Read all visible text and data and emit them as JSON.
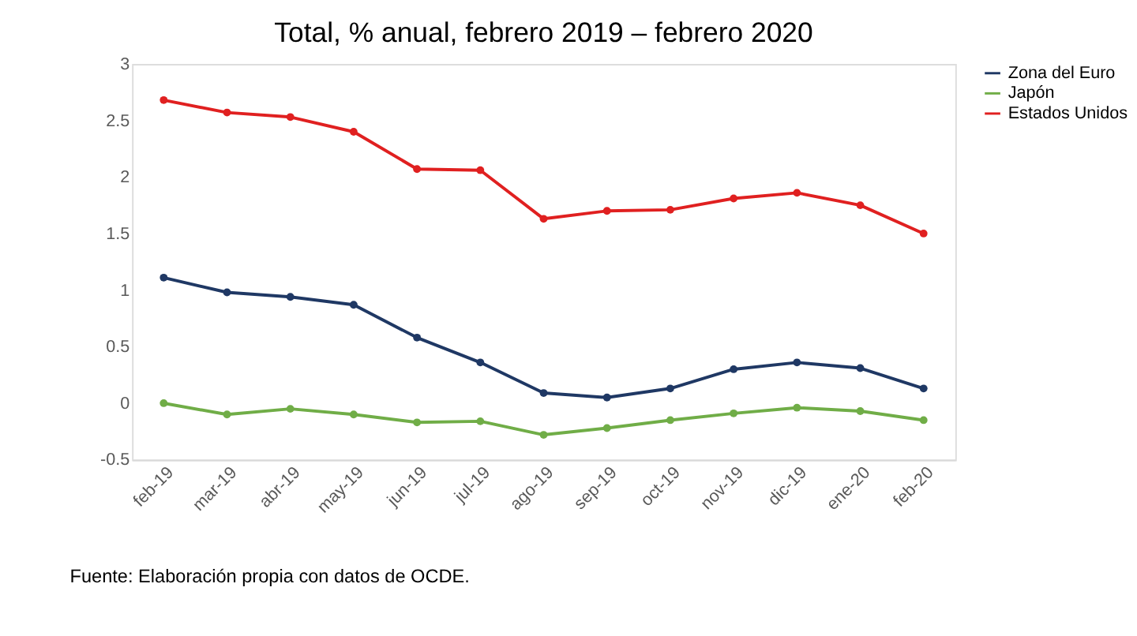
{
  "chart_data": {
    "type": "line",
    "title": "Total, % anual, febrero 2019 – febrero 2020",
    "categories": [
      "feb-19",
      "mar-19",
      "abr-19",
      "may-19",
      "jun-19",
      "jul-19",
      "ago-19",
      "sep-19",
      "oct-19",
      "nov-19",
      "dic-19",
      "ene-20",
      "feb-20"
    ],
    "series": [
      {
        "name": "Zona del Euro",
        "color": "#1f3864",
        "values": [
          1.11,
          0.98,
          0.94,
          0.87,
          0.58,
          0.36,
          0.09,
          0.05,
          0.13,
          0.3,
          0.36,
          0.31,
          0.13
        ]
      },
      {
        "name": "Japón",
        "color": "#70ad47",
        "values": [
          0.0,
          -0.1,
          -0.05,
          -0.1,
          -0.17,
          -0.16,
          -0.28,
          -0.22,
          -0.15,
          -0.09,
          -0.04,
          -0.07,
          -0.15
        ]
      },
      {
        "name": "Estados Unidos",
        "color": "#e02020",
        "values": [
          2.68,
          2.57,
          2.53,
          2.4,
          2.07,
          2.06,
          1.63,
          1.7,
          1.71,
          1.81,
          1.86,
          1.75,
          1.5
        ]
      }
    ],
    "ylim": [
      -0.5,
      3
    ],
    "yticks": [
      -0.5,
      0,
      0.5,
      1,
      1.5,
      2,
      2.5,
      3
    ],
    "grid": false,
    "legend": "right",
    "marker": "circle",
    "annotations": [
      "Fuente: Elaboración propia con datos de OCDE."
    ]
  }
}
